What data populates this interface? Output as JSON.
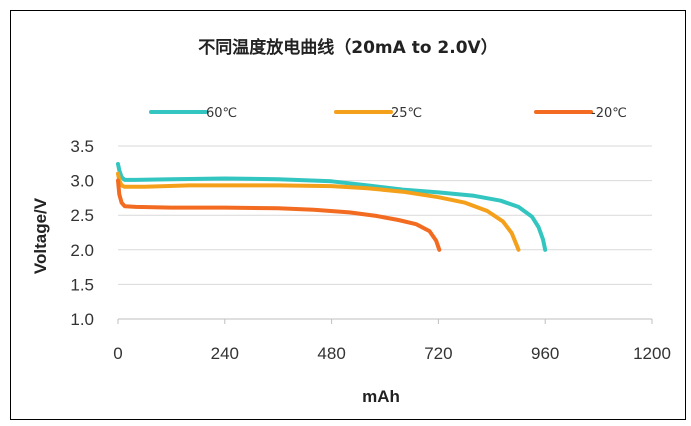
{
  "chart_data": {
    "type": "line",
    "title": "不同温度放电曲线（20mA to 2.0V）",
    "xlabel": "mAh",
    "ylabel": "Voltage/V",
    "xlim": [
      0,
      1200
    ],
    "ylim": [
      1.0,
      3.5
    ],
    "xticks": [
      0,
      240,
      480,
      720,
      960,
      1200
    ],
    "yticks": [
      1.0,
      1.5,
      2.0,
      2.5,
      3.0,
      3.5
    ],
    "xtick_labels": [
      "0",
      "240",
      "480",
      "720",
      "960",
      "1200"
    ],
    "ytick_labels": [
      "1.0",
      "1.5",
      "2.0",
      "2.5",
      "3.0",
      "3.5"
    ],
    "grid": "horizontal",
    "legend_position": "top",
    "series": [
      {
        "name": "60℃",
        "color": "#33c5c0",
        "points": [
          [
            0,
            3.24
          ],
          [
            3,
            3.15
          ],
          [
            8,
            3.05
          ],
          [
            15,
            3.01
          ],
          [
            40,
            3.01
          ],
          [
            120,
            3.02
          ],
          [
            240,
            3.03
          ],
          [
            360,
            3.02
          ],
          [
            480,
            2.99
          ],
          [
            560,
            2.93
          ],
          [
            640,
            2.87
          ],
          [
            720,
            2.83
          ],
          [
            800,
            2.78
          ],
          [
            860,
            2.71
          ],
          [
            900,
            2.62
          ],
          [
            930,
            2.48
          ],
          [
            945,
            2.33
          ],
          [
            955,
            2.15
          ],
          [
            960,
            2.0
          ]
        ]
      },
      {
        "name": "25℃",
        "color": "#f5a01a",
        "points": [
          [
            0,
            3.1
          ],
          [
            3,
            3.0
          ],
          [
            8,
            2.93
          ],
          [
            15,
            2.91
          ],
          [
            60,
            2.91
          ],
          [
            160,
            2.93
          ],
          [
            240,
            2.93
          ],
          [
            360,
            2.93
          ],
          [
            480,
            2.92
          ],
          [
            560,
            2.89
          ],
          [
            640,
            2.84
          ],
          [
            720,
            2.76
          ],
          [
            780,
            2.68
          ],
          [
            830,
            2.56
          ],
          [
            865,
            2.41
          ],
          [
            885,
            2.24
          ],
          [
            900,
            2.0
          ]
        ]
      },
      {
        "name": "-20℃",
        "color": "#f26b21",
        "points": [
          [
            0,
            3.0
          ],
          [
            3,
            2.8
          ],
          [
            8,
            2.68
          ],
          [
            15,
            2.63
          ],
          [
            40,
            2.62
          ],
          [
            120,
            2.61
          ],
          [
            240,
            2.61
          ],
          [
            360,
            2.6
          ],
          [
            440,
            2.58
          ],
          [
            520,
            2.54
          ],
          [
            580,
            2.49
          ],
          [
            630,
            2.43
          ],
          [
            670,
            2.37
          ],
          [
            700,
            2.27
          ],
          [
            715,
            2.13
          ],
          [
            722,
            2.0
          ]
        ]
      }
    ]
  }
}
